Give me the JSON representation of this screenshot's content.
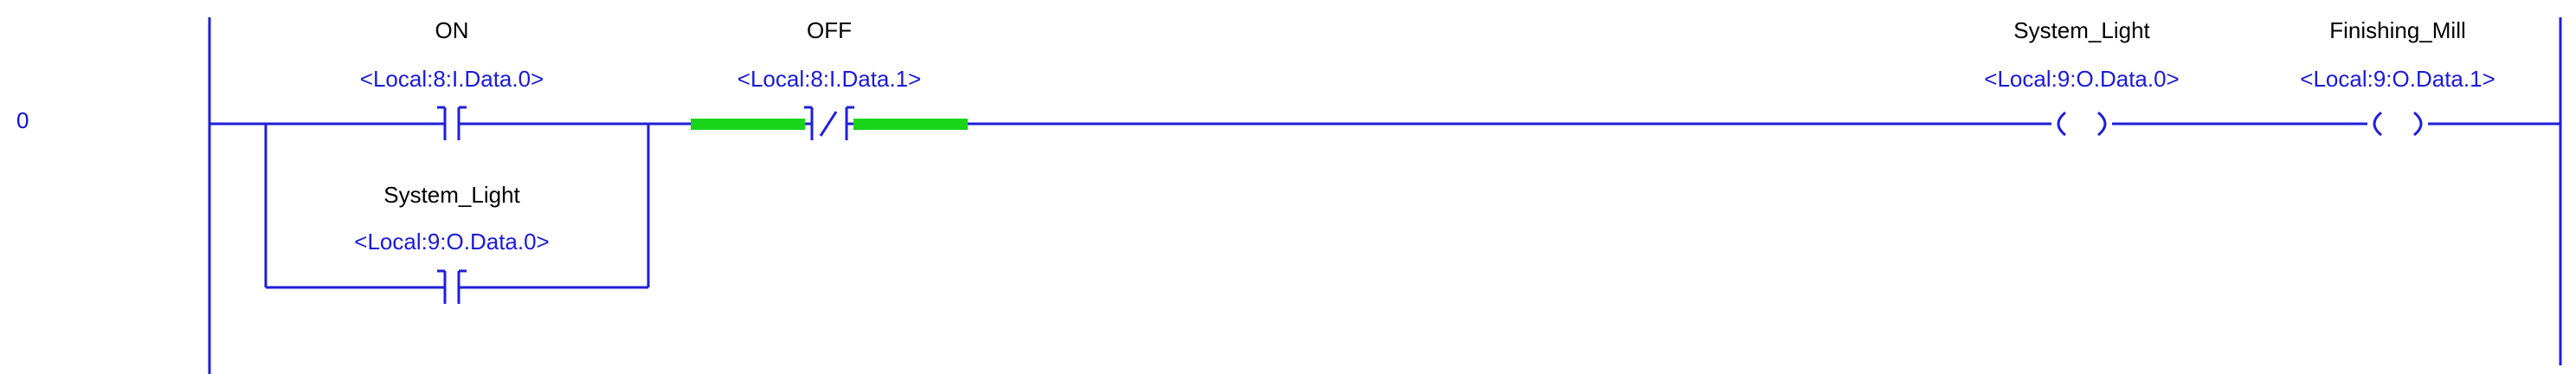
{
  "rung": {
    "number": "0"
  },
  "instructions": {
    "on_contact": {
      "tag": "ON",
      "address": "<Local:8:I.Data.0>",
      "type": "XIC"
    },
    "off_contact": {
      "tag": "OFF",
      "address": "<Local:8:I.Data.1>",
      "type": "XIO",
      "highlighted": true
    },
    "system_light_contact": {
      "tag": "System_Light",
      "address": "<Local:9:O.Data.0>",
      "type": "XIC"
    },
    "system_light_coil": {
      "tag": "System_Light",
      "address": "<Local:9:O.Data.0>",
      "type": "OTE"
    },
    "finishing_mill_coil": {
      "tag": "Finishing_Mill",
      "address": "<Local:9:O.Data.1>",
      "type": "OTE"
    }
  },
  "colors": {
    "wire": "#1f1fd9",
    "rail": "#1f1fd9",
    "energized": "#19d419",
    "tag_text": "#000000",
    "address_text": "#1a1adc"
  }
}
